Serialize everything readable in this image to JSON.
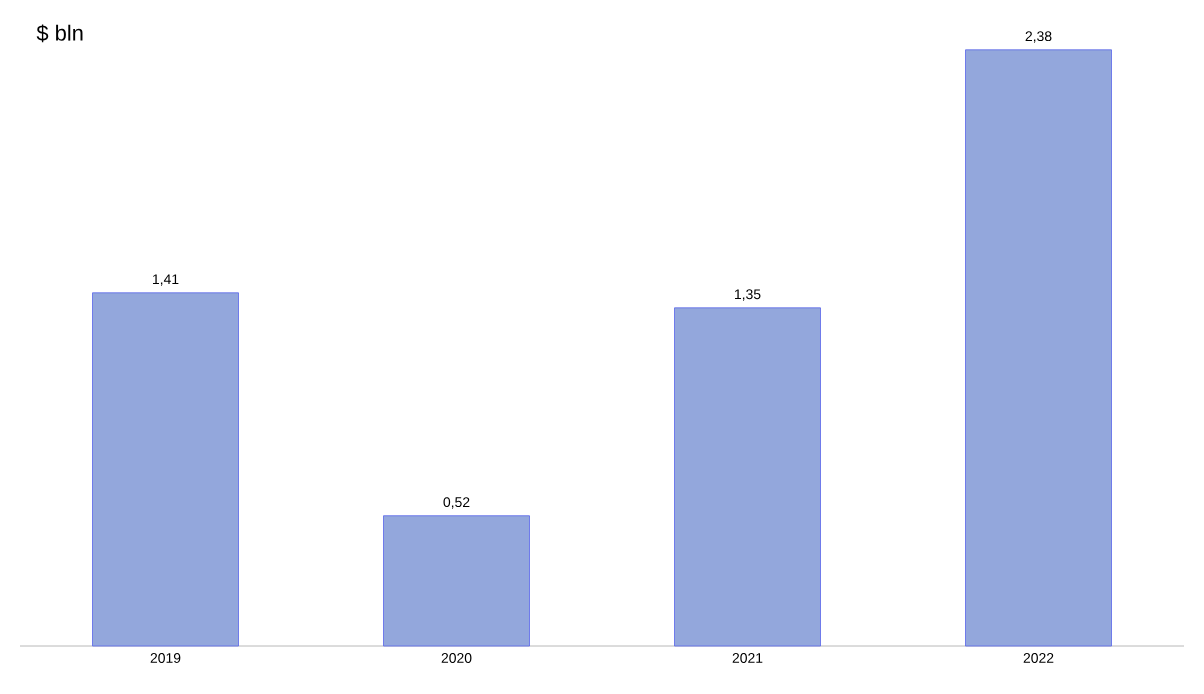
{
  "chart_data": {
    "type": "bar",
    "ylabel": "$ bln",
    "categories": [
      "2019",
      "2020",
      "2021",
      "2022"
    ],
    "values": [
      1.41,
      0.52,
      1.35,
      2.38
    ],
    "value_labels": [
      "1,41",
      "0,52",
      "1,35",
      "2,38"
    ],
    "color": "#93a7dc"
  }
}
